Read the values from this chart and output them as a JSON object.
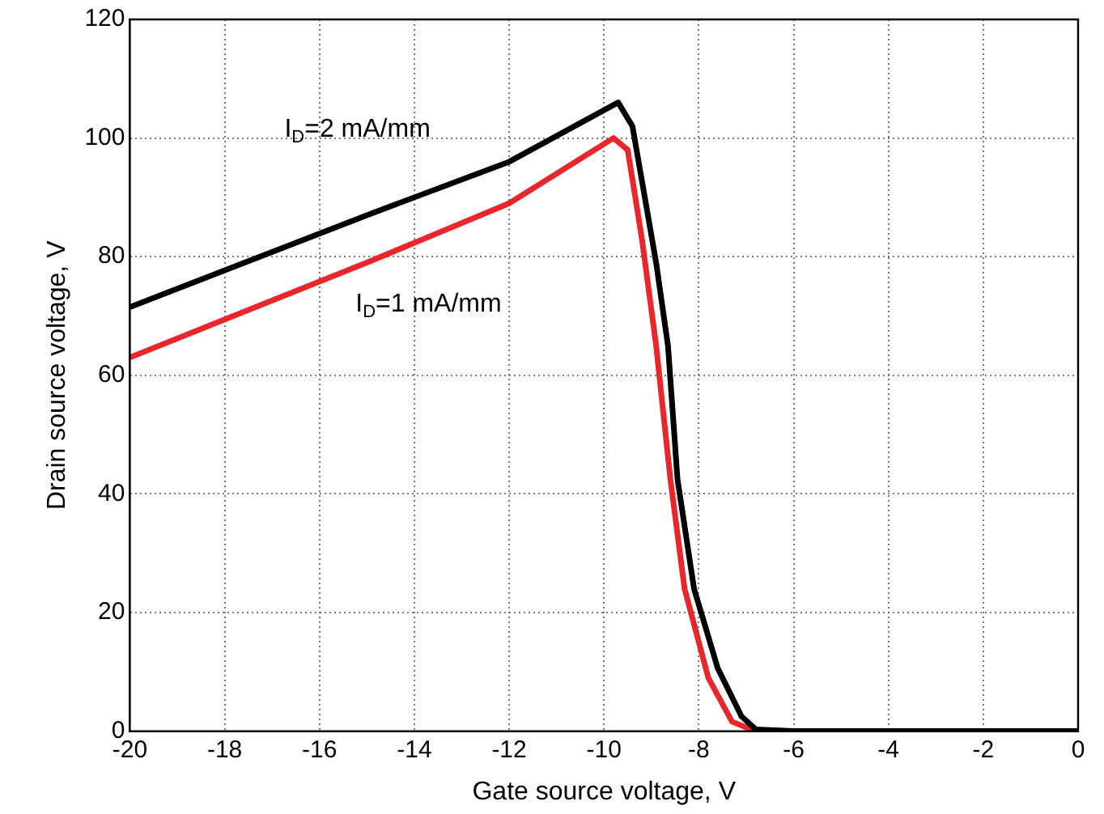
{
  "chart_data": {
    "type": "line",
    "xlabel": "Gate source voltage, V",
    "ylabel": "Drain source voltage, V",
    "xlim": [
      -20,
      0
    ],
    "xticks": [
      -20,
      -18,
      -16,
      -14,
      -12,
      -10,
      -8,
      -6,
      -4,
      -2,
      0
    ],
    "ylim": [
      0,
      120
    ],
    "yticks": [
      0,
      20,
      40,
      60,
      80,
      100,
      120
    ],
    "grid": true,
    "legend": false,
    "marker": "none",
    "line_style": "solid",
    "series": [
      {
        "color": "#000000",
        "x": [
          -20,
          -15,
          -12,
          -9.7,
          -9.4,
          -8.9,
          -8.65,
          -8.45,
          -8.1,
          -7.6,
          -7.1,
          -6.8,
          -6,
          -4,
          -2,
          0
        ],
        "values": [
          71.5,
          87,
          96,
          106,
          102,
          79,
          65,
          42.5,
          24,
          10.6,
          2.5,
          0.3,
          0,
          0,
          0,
          0
        ]
      },
      {
        "color": "#e8262b",
        "x": [
          -20,
          -15,
          -12,
          -9.8,
          -9.5,
          -9.2,
          -8.9,
          -8.6,
          -8.3,
          -7.8,
          -7.3,
          -6.9,
          -6.5
        ],
        "values": [
          63,
          79,
          89,
          100,
          98,
          83,
          65,
          42.5,
          24,
          9,
          1.6,
          0.3,
          0
        ]
      }
    ],
    "annotations": [
      "I$_{D}$=2 mA/mm",
      "I$_{D}$=1 mA/mm"
    ]
  }
}
